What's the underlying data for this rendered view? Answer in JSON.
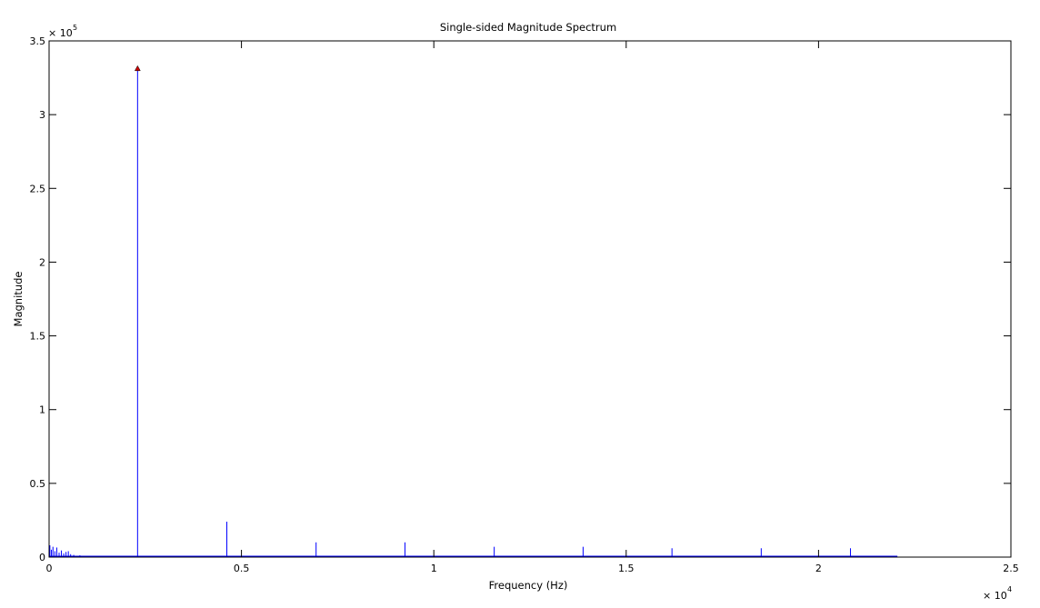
{
  "chart_data": {
    "type": "line",
    "title": "Single-sided Magnitude Spectrum",
    "xlabel": "Frequency (Hz)",
    "ylabel": "Magnitude",
    "x_multiplier": "× 10",
    "x_multiplier_exp": "4",
    "y_multiplier": "× 10",
    "y_multiplier_exp": "5",
    "xlim": [
      0,
      25000
    ],
    "ylim": [
      0,
      350000
    ],
    "xticks": [
      0,
      5000,
      10000,
      15000,
      20000,
      25000
    ],
    "xtick_labels": [
      "0",
      "0.5",
      "1",
      "1.5",
      "2",
      "2.5"
    ],
    "yticks": [
      0,
      50000,
      100000,
      150000,
      200000,
      250000,
      300000,
      350000
    ],
    "ytick_labels": [
      "0",
      "0.5",
      "1",
      "1.5",
      "2",
      "2.5",
      "3",
      "3.5"
    ],
    "grid": false,
    "series": [
      {
        "color": "#0000ff",
        "baseline": 300,
        "x_end": 22050,
        "peaks": [
          {
            "x": 2300,
            "y": 331000
          },
          {
            "x": 4620,
            "y": 24000
          },
          {
            "x": 6940,
            "y": 10000
          },
          {
            "x": 9250,
            "y": 10000
          },
          {
            "x": 11570,
            "y": 7000
          },
          {
            "x": 13880,
            "y": 7000
          },
          {
            "x": 16190,
            "y": 6000
          },
          {
            "x": 18510,
            "y": 6000
          },
          {
            "x": 20830,
            "y": 6000
          }
        ],
        "low_freq_noise": [
          {
            "x": 20,
            "y": 8000
          },
          {
            "x": 60,
            "y": 5000
          },
          {
            "x": 100,
            "y": 7000
          },
          {
            "x": 150,
            "y": 4000
          },
          {
            "x": 200,
            "y": 6500
          },
          {
            "x": 260,
            "y": 3000
          },
          {
            "x": 320,
            "y": 4500
          },
          {
            "x": 380,
            "y": 2500
          },
          {
            "x": 440,
            "y": 3500
          },
          {
            "x": 500,
            "y": 4000
          },
          {
            "x": 560,
            "y": 2000
          },
          {
            "x": 640,
            "y": 1500
          },
          {
            "x": 800,
            "y": 1200
          },
          {
            "x": 1000,
            "y": 800
          }
        ]
      }
    ],
    "marker": {
      "x": 2300,
      "y": 331000,
      "shape": "triangle",
      "color": "#cc0000"
    }
  }
}
